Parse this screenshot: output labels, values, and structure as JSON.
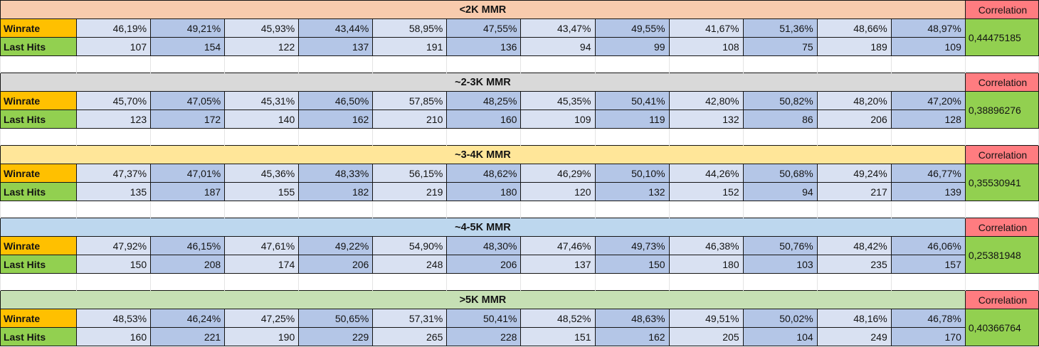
{
  "labels": {
    "winrate": "Winrate",
    "last_hits": "Last Hits",
    "correlation": "Correlation"
  },
  "colors": {
    "winrate_label_bg": "#FFC000",
    "last_hits_label_bg": "#92D050",
    "correlation_label_bg": "#FF7C80",
    "correlation_value_bg": "#92D050",
    "cell_light": "#D9E1F2",
    "cell_dark": "#B4C6E7"
  },
  "sections": [
    {
      "title": "<2K MMR",
      "header_bg": "#F8CBAD",
      "winrate": [
        "46,19%",
        "49,21%",
        "45,93%",
        "43,44%",
        "58,95%",
        "47,55%",
        "43,47%",
        "49,55%",
        "41,67%",
        "51,36%",
        "48,66%",
        "48,97%"
      ],
      "last_hits": [
        "107",
        "154",
        "122",
        "137",
        "191",
        "136",
        "94",
        "99",
        "108",
        "75",
        "189",
        "109"
      ],
      "correlation": "0,44475185"
    },
    {
      "title": "~2-3K MMR",
      "header_bg": "#D9D9D9",
      "winrate": [
        "45,70%",
        "47,05%",
        "45,31%",
        "46,50%",
        "57,85%",
        "48,25%",
        "45,35%",
        "50,41%",
        "42,80%",
        "50,82%",
        "48,20%",
        "47,20%"
      ],
      "last_hits": [
        "123",
        "172",
        "140",
        "162",
        "210",
        "160",
        "109",
        "119",
        "132",
        "86",
        "206",
        "128"
      ],
      "correlation": "0,38896276"
    },
    {
      "title": "~3-4K MMR",
      "header_bg": "#FFE699",
      "winrate": [
        "47,37%",
        "47,01%",
        "45,36%",
        "48,33%",
        "56,15%",
        "48,62%",
        "46,29%",
        "50,10%",
        "44,26%",
        "50,68%",
        "49,24%",
        "46,77%"
      ],
      "last_hits": [
        "135",
        "187",
        "155",
        "182",
        "219",
        "180",
        "120",
        "132",
        "152",
        "94",
        "217",
        "139"
      ],
      "correlation": "0,35530941"
    },
    {
      "title": "~4-5K MMR",
      "header_bg": "#BDD7EE",
      "winrate": [
        "47,92%",
        "46,15%",
        "47,61%",
        "49,22%",
        "54,90%",
        "48,30%",
        "47,46%",
        "49,73%",
        "46,38%",
        "50,76%",
        "48,42%",
        "46,06%"
      ],
      "last_hits": [
        "150",
        "208",
        "174",
        "206",
        "248",
        "206",
        "137",
        "150",
        "180",
        "103",
        "235",
        "157"
      ],
      "correlation": "0,25381948"
    },
    {
      "title": ">5K MMR",
      "header_bg": "#C6E0B4",
      "winrate": [
        "48,53%",
        "46,24%",
        "47,25%",
        "50,65%",
        "57,31%",
        "50,41%",
        "48,52%",
        "48,63%",
        "49,51%",
        "50,02%",
        "48,16%",
        "46,78%"
      ],
      "last_hits": [
        "160",
        "221",
        "190",
        "229",
        "265",
        "228",
        "151",
        "162",
        "205",
        "104",
        "249",
        "170"
      ],
      "correlation": "0,40366764"
    }
  ]
}
